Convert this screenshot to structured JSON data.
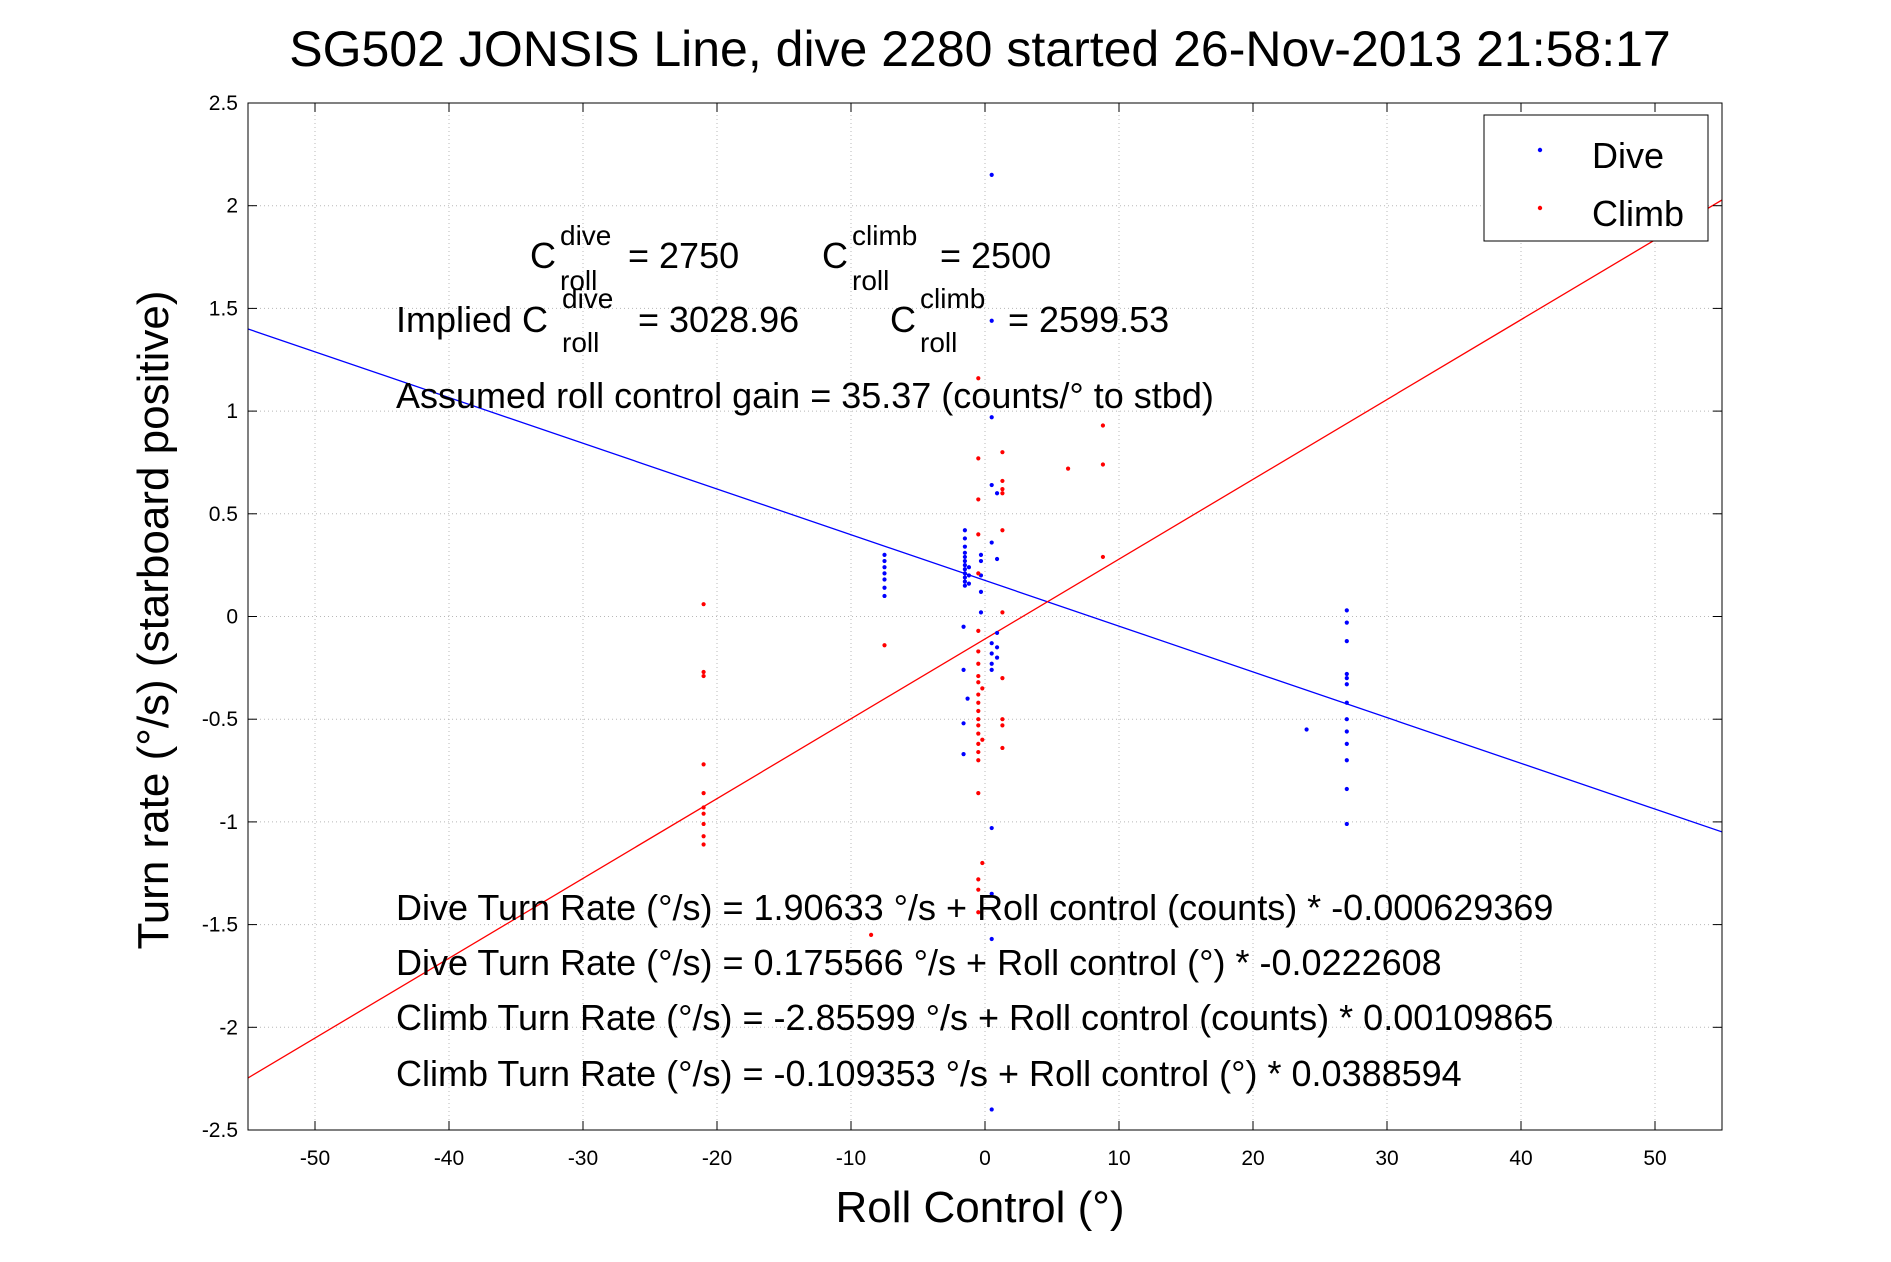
{
  "chart_data": {
    "type": "scatter",
    "title": "SG502 JONSIS Line, dive 2280 started 26-Nov-2013 21:58:17",
    "xlabel": "Roll Control (°)",
    "ylabel": "Turn rate (°/s) (starboard positive)",
    "xlim": [
      -55,
      55
    ],
    "ylim": [
      -2.5,
      2.5
    ],
    "xticks": [
      -50,
      -40,
      -30,
      -20,
      -10,
      0,
      10,
      20,
      30,
      40,
      50
    ],
    "yticks": [
      -2.5,
      -2,
      -1.5,
      -1,
      -0.5,
      0,
      0.5,
      1,
      1.5,
      2,
      2.5
    ],
    "grid": true,
    "legend_position": "top-right",
    "colors": {
      "dive": "#0000ff",
      "climb": "#ff0000"
    },
    "series": [
      {
        "name": "Dive",
        "color": "#0000ff",
        "points": [
          [
            -7.5,
            0.1
          ],
          [
            -7.5,
            0.14
          ],
          [
            -7.5,
            0.18
          ],
          [
            -7.5,
            0.21
          ],
          [
            -7.5,
            0.24
          ],
          [
            -7.5,
            0.27
          ],
          [
            -7.5,
            0.3
          ],
          [
            -1.5,
            0.15
          ],
          [
            -1.5,
            0.17
          ],
          [
            -1.5,
            0.19
          ],
          [
            -1.5,
            0.21
          ],
          [
            -1.5,
            0.23
          ],
          [
            -1.5,
            0.25
          ],
          [
            -1.5,
            0.27
          ],
          [
            -1.5,
            0.29
          ],
          [
            -1.5,
            0.31
          ],
          [
            -1.5,
            0.34
          ],
          [
            -1.5,
            0.38
          ],
          [
            -1.5,
            0.42
          ],
          [
            -1.2,
            0.16
          ],
          [
            -1.2,
            0.2
          ],
          [
            -1.2,
            0.24
          ],
          [
            -1.6,
            -0.05
          ],
          [
            -1.6,
            -0.26
          ],
          [
            -1.6,
            -0.52
          ],
          [
            -1.6,
            -0.67
          ],
          [
            -1.3,
            -0.4
          ],
          [
            -0.3,
            0.2
          ],
          [
            -0.3,
            0.27
          ],
          [
            -0.3,
            0.3
          ],
          [
            -0.3,
            0.12
          ],
          [
            -0.3,
            0.02
          ],
          [
            0.5,
            2.15
          ],
          [
            0.5,
            1.44
          ],
          [
            0.5,
            0.97
          ],
          [
            0.5,
            0.64
          ],
          [
            0.5,
            0.36
          ],
          [
            0.5,
            -0.13
          ],
          [
            0.5,
            -0.18
          ],
          [
            0.5,
            -0.23
          ],
          [
            0.5,
            -0.26
          ],
          [
            0.5,
            -1.03
          ],
          [
            0.5,
            -1.35
          ],
          [
            0.5,
            -1.57
          ],
          [
            0.5,
            -2.4
          ],
          [
            0.9,
            -0.08
          ],
          [
            0.9,
            -0.15
          ],
          [
            0.9,
            -0.2
          ],
          [
            0.9,
            0.28
          ],
          [
            0.9,
            0.6
          ],
          [
            24,
            -0.55
          ],
          [
            27,
            0.03
          ],
          [
            27,
            -0.03
          ],
          [
            27,
            -0.12
          ],
          [
            27,
            -0.28
          ],
          [
            27,
            -0.3
          ],
          [
            27,
            -0.33
          ],
          [
            27,
            -0.42
          ],
          [
            27,
            -0.5
          ],
          [
            27,
            -0.56
          ],
          [
            27,
            -0.62
          ],
          [
            27,
            -0.7
          ],
          [
            27,
            -0.84
          ],
          [
            27,
            -1.01
          ]
        ],
        "fit_line": {
          "intercept": 0.175566,
          "slope": -0.0222608
        }
      },
      {
        "name": "Climb",
        "color": "#ff0000",
        "points": [
          [
            -21,
            0.06
          ],
          [
            -21,
            -0.27
          ],
          [
            -21,
            -0.29
          ],
          [
            -21,
            -0.72
          ],
          [
            -21,
            -0.86
          ],
          [
            -21,
            -0.93
          ],
          [
            -21,
            -0.96
          ],
          [
            -21,
            -1.01
          ],
          [
            -21,
            -1.07
          ],
          [
            -21,
            -1.11
          ],
          [
            -7.5,
            -0.14
          ],
          [
            -8.5,
            -1.55
          ],
          [
            -0.5,
            1.16
          ],
          [
            -0.5,
            0.77
          ],
          [
            -0.5,
            0.57
          ],
          [
            -0.5,
            0.4
          ],
          [
            -0.5,
            0.21
          ],
          [
            -0.5,
            -0.07
          ],
          [
            -0.5,
            -0.17
          ],
          [
            -0.5,
            -0.23
          ],
          [
            -0.5,
            -0.29
          ],
          [
            -0.5,
            -0.32
          ],
          [
            -0.5,
            -0.38
          ],
          [
            -0.5,
            -0.42
          ],
          [
            -0.5,
            -0.46
          ],
          [
            -0.5,
            -0.5
          ],
          [
            -0.5,
            -0.53
          ],
          [
            -0.5,
            -0.57
          ],
          [
            -0.5,
            -0.62
          ],
          [
            -0.5,
            -0.66
          ],
          [
            -0.5,
            -0.7
          ],
          [
            -0.5,
            -0.86
          ],
          [
            -0.5,
            -1.28
          ],
          [
            -0.5,
            -1.33
          ],
          [
            -0.5,
            -1.44
          ],
          [
            -0.2,
            -0.35
          ],
          [
            -0.2,
            -0.6
          ],
          [
            -0.2,
            -1.2
          ],
          [
            1.3,
            0.8
          ],
          [
            1.3,
            0.66
          ],
          [
            1.3,
            0.62
          ],
          [
            1.3,
            0.6
          ],
          [
            1.3,
            0.42
          ],
          [
            1.3,
            0.02
          ],
          [
            1.3,
            -0.3
          ],
          [
            1.3,
            -0.5
          ],
          [
            1.3,
            -0.53
          ],
          [
            1.3,
            -0.64
          ],
          [
            6.2,
            0.72
          ],
          [
            8.8,
            0.93
          ],
          [
            8.8,
            0.74
          ],
          [
            8.8,
            0.29
          ]
        ],
        "fit_line": {
          "intercept": -0.109353,
          "slope": 0.0388594
        }
      }
    ],
    "annotations": {
      "c_roll_dive": {
        "prefix": "C",
        "sup": "dive",
        "sub": "roll",
        "value": "= 2750"
      },
      "c_roll_climb": {
        "prefix": "C",
        "sup": "climb",
        "sub": "roll",
        "value": "= 2500"
      },
      "implied_dive": {
        "prefix": "Implied C",
        "sup": "dive",
        "sub": "roll",
        "value": "= 3028.96"
      },
      "implied_climb": {
        "prefix": "C",
        "sup": "climb",
        "sub": "roll",
        "value": "= 2599.53"
      },
      "gain": "Assumed roll control gain = 35.37 (counts/° to stbd)",
      "eq1": "Dive Turn Rate (°/s) = 1.90633 °/s + Roll control (counts) * -0.000629369",
      "eq2": "Dive Turn Rate (°/s) = 0.175566 °/s + Roll control (°) * -0.0222608",
      "eq3": "Climb Turn Rate (°/s) = -2.85599 °/s + Roll control (counts) * 0.00109865",
      "eq4": "Climb Turn Rate (°/s) = -0.109353 °/s + Roll control (°) * 0.0388594"
    }
  }
}
